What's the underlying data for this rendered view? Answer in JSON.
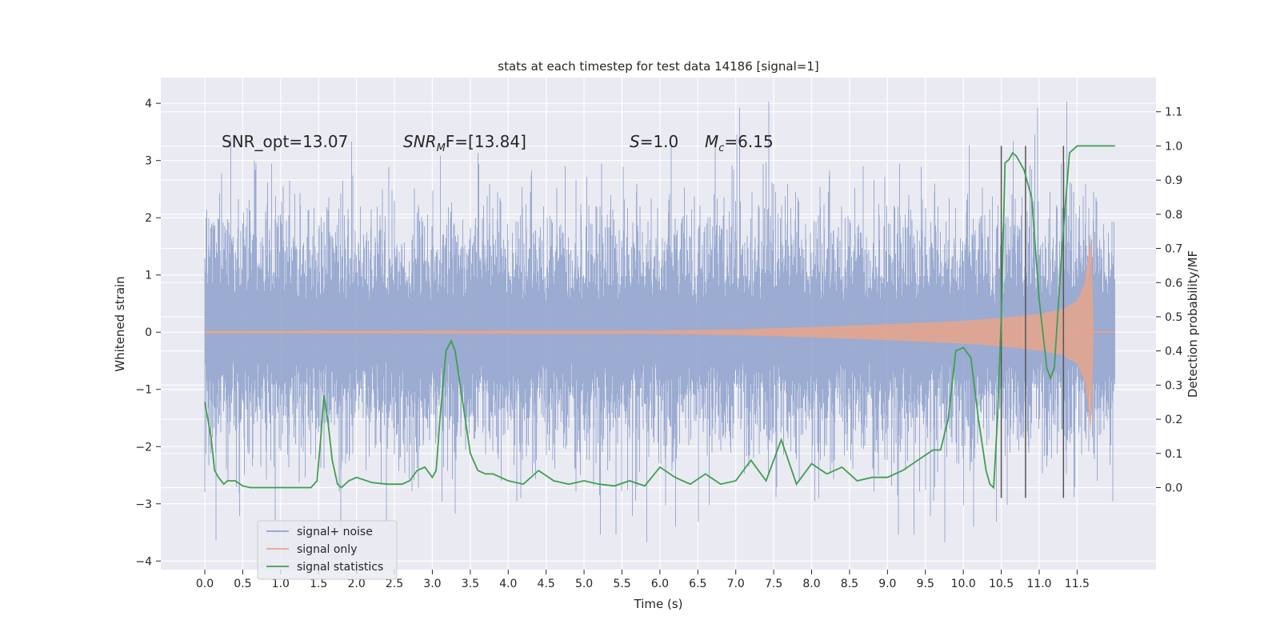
{
  "chart_data": {
    "type": "line",
    "title": "stats at each timestep for test data 14186 [signal=1]",
    "xlabel": "Time (s)",
    "ylabel_left": "Whitened strain",
    "ylabel_right": "Detection probability/MF",
    "xlim": [
      -0.58,
      12.54
    ],
    "ylim_left": [
      -4.15,
      4.45
    ],
    "ylim_right": [
      -0.24,
      1.2
    ],
    "x_ticks": [
      0.0,
      0.5,
      1.0,
      1.5,
      2.0,
      2.5,
      3.0,
      3.5,
      4.0,
      4.5,
      5.0,
      5.5,
      6.0,
      6.5,
      7.0,
      7.5,
      8.0,
      8.5,
      9.0,
      9.5,
      10.0,
      10.5,
      11.0,
      11.5
    ],
    "x_tick_labels": [
      "0.0",
      "0.5",
      "1.0",
      "1.5",
      "2.0",
      "2.5",
      "3.0",
      "3.5",
      "4.0",
      "4.5",
      "5.0",
      "5.5",
      "6.0",
      "6.5",
      "7.0",
      "7.5",
      "8.0",
      "8.5",
      "9.0",
      "9.5",
      "10.0",
      "10.5",
      "11.0",
      "11.5"
    ],
    "y_left_ticks": [
      -4,
      -3,
      -2,
      -1,
      0,
      1,
      2,
      3,
      4
    ],
    "y_left_tick_labels": [
      "−4",
      "−3",
      "−2",
      "−1",
      "0",
      "1",
      "2",
      "3",
      "4"
    ],
    "y_right_ticks": [
      0.0,
      0.1,
      0.2,
      0.3,
      0.4,
      0.5,
      0.6,
      0.7,
      0.8,
      0.9,
      1.0,
      1.1
    ],
    "y_right_tick_labels": [
      "0.0",
      "0.1",
      "0.2",
      "0.3",
      "0.4",
      "0.5",
      "0.6",
      "0.7",
      "0.8",
      "0.9",
      "1.0",
      "1.1"
    ],
    "grid": true,
    "legend_position": "lower-left",
    "annotations": {
      "snr_opt": "SNR_opt=13.07",
      "snr_mf_base": "SNR",
      "snr_mf_sub": "M",
      "snr_mf_rest": "F=[13.84]",
      "s_sym": "S",
      "s_rest": "=1.0",
      "mc_base": "M",
      "mc_sub": "c",
      "mc_rest": "=6.15"
    },
    "vertical_lines_x": [
      10.5,
      10.82,
      11.32
    ],
    "vertical_lines_ylim": [
      -0.03,
      1.0
    ],
    "series": [
      {
        "name": "signal+ noise",
        "color": "#8da0cb",
        "axis": "left",
        "kind": "noise",
        "x_range": [
          0.0,
          12.0
        ],
        "typical_amplitude": 1.4,
        "max": 4.1,
        "min": -3.7
      },
      {
        "name": "signal only",
        "color": "#e8a48c",
        "axis": "left",
        "kind": "chirp",
        "x_range": [
          0.0,
          11.72
        ],
        "envelope": {
          "x": [
            0.0,
            6.0,
            7.0,
            8.0,
            9.0,
            10.0,
            10.5,
            11.0,
            11.3,
            11.5,
            11.6,
            11.65,
            11.68,
            11.72
          ],
          "y": [
            0.02,
            0.03,
            0.05,
            0.09,
            0.14,
            0.2,
            0.25,
            0.32,
            0.4,
            0.55,
            0.85,
            1.35,
            1.75,
            0.02
          ]
        }
      },
      {
        "name": "signal statistics",
        "color": "#3f9f50",
        "axis": "right",
        "x": [
          0.0,
          0.08,
          0.13,
          0.18,
          0.25,
          0.3,
          0.4,
          0.5,
          0.6,
          0.8,
          1.0,
          1.2,
          1.4,
          1.48,
          1.53,
          1.57,
          1.62,
          1.68,
          1.75,
          1.8,
          1.9,
          2.0,
          2.2,
          2.4,
          2.6,
          2.7,
          2.8,
          2.9,
          3.0,
          3.05,
          3.1,
          3.18,
          3.25,
          3.3,
          3.4,
          3.5,
          3.6,
          3.7,
          3.8,
          4.0,
          4.2,
          4.4,
          4.6,
          4.8,
          5.0,
          5.2,
          5.4,
          5.6,
          5.8,
          6.0,
          6.2,
          6.4,
          6.6,
          6.8,
          7.0,
          7.2,
          7.4,
          7.6,
          7.8,
          8.0,
          8.2,
          8.4,
          8.6,
          8.8,
          9.0,
          9.2,
          9.4,
          9.6,
          9.7,
          9.8,
          9.9,
          10.0,
          10.1,
          10.2,
          10.3,
          10.35,
          10.4,
          10.45,
          10.5,
          10.55,
          10.6,
          10.65,
          10.7,
          10.8,
          10.9,
          11.0,
          11.1,
          11.15,
          11.2,
          11.3,
          11.4,
          11.5,
          11.6,
          11.7,
          11.8,
          11.9,
          12.0
        ],
        "y": [
          0.25,
          0.15,
          0.05,
          0.03,
          0.01,
          0.02,
          0.02,
          0.005,
          0.0,
          0.0,
          0.0,
          0.0,
          0.0,
          0.02,
          0.15,
          0.27,
          0.2,
          0.08,
          0.01,
          0.0,
          0.02,
          0.03,
          0.015,
          0.01,
          0.01,
          0.02,
          0.05,
          0.06,
          0.03,
          0.05,
          0.2,
          0.4,
          0.43,
          0.4,
          0.25,
          0.1,
          0.05,
          0.04,
          0.04,
          0.02,
          0.01,
          0.05,
          0.02,
          0.01,
          0.02,
          0.01,
          0.005,
          0.02,
          0.005,
          0.06,
          0.03,
          0.01,
          0.04,
          0.01,
          0.02,
          0.08,
          0.02,
          0.14,
          0.01,
          0.07,
          0.04,
          0.06,
          0.02,
          0.03,
          0.03,
          0.05,
          0.08,
          0.11,
          0.11,
          0.2,
          0.4,
          0.41,
          0.38,
          0.2,
          0.05,
          0.01,
          0.0,
          0.2,
          0.5,
          0.95,
          0.96,
          0.98,
          0.97,
          0.93,
          0.85,
          0.55,
          0.35,
          0.32,
          0.35,
          0.7,
          0.98,
          1.0,
          1.0,
          1.0,
          1.0,
          1.0,
          1.0
        ]
      }
    ]
  }
}
